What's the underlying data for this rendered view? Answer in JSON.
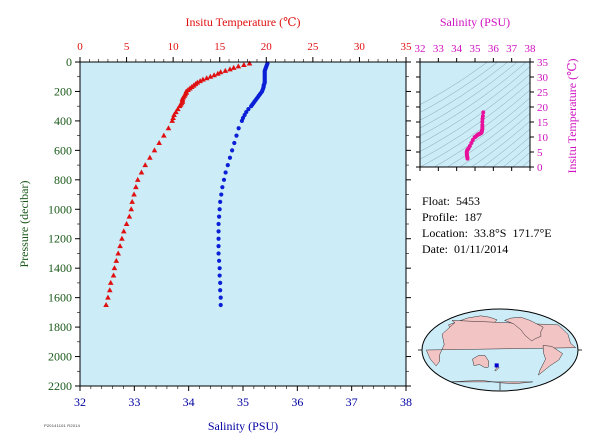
{
  "chart_data": [
    {
      "type": "scatter",
      "name_hint": "profile",
      "top_axis_title": "Insitu Temperature (℃)",
      "bottom_axis_title": "Salinity (PSU)",
      "ylabel": "Pressure (decibar)",
      "temp_range": [
        0,
        35
      ],
      "sal_range": [
        32,
        38
      ],
      "ylim": [
        0,
        2200
      ],
      "y_inverted": true,
      "temp_ticks": [
        "0",
        "5",
        "10",
        "15",
        "20",
        "25",
        "30",
        "35"
      ],
      "sal_ticks": [
        "32",
        "33",
        "34",
        "35",
        "36",
        "37",
        "38"
      ],
      "y_ticks": [
        "0",
        "200",
        "400",
        "600",
        "800",
        "1000",
        "1200",
        "1400",
        "1600",
        "1800",
        "2000",
        "2200"
      ],
      "colors": {
        "temperature": "#e01010",
        "salinity": "#0a1fd6",
        "background": "#ccecf8",
        "temp_axis": "#e01010",
        "sal_axis": "#0000a0",
        "y_axis": "#1a5a1a"
      },
      "temperature": {
        "pressure": [
          10,
          20,
          30,
          40,
          50,
          60,
          70,
          80,
          90,
          100,
          110,
          120,
          130,
          140,
          150,
          160,
          170,
          180,
          190,
          200,
          210,
          220,
          230,
          240,
          250,
          260,
          270,
          280,
          290,
          300,
          320,
          340,
          360,
          380,
          400,
          450,
          500,
          550,
          600,
          650,
          700,
          750,
          800,
          850,
          900,
          950,
          1000,
          1050,
          1100,
          1150,
          1200,
          1250,
          1300,
          1350,
          1400,
          1450,
          1500,
          1550,
          1600,
          1650
        ],
        "values": [
          18.2,
          17.6,
          17.0,
          16.5,
          16.1,
          15.6,
          15.1,
          14.8,
          14.4,
          14.0,
          13.6,
          13.2,
          12.9,
          12.6,
          12.4,
          12.2,
          12.0,
          11.8,
          11.6,
          11.4,
          11.4,
          11.3,
          11.2,
          11.1,
          11.0,
          11.0,
          11.0,
          10.9,
          10.8,
          10.7,
          10.5,
          10.3,
          10.1,
          10.0,
          9.9,
          9.5,
          9.0,
          8.5,
          8.0,
          7.5,
          7.0,
          6.6,
          6.2,
          6.0,
          5.8,
          5.6,
          5.5,
          5.3,
          5.0,
          4.7,
          4.5,
          4.3,
          4.1,
          3.9,
          3.7,
          3.6,
          3.3,
          3.2,
          3.0,
          2.8
        ]
      },
      "salinity": {
        "pressure": [
          10,
          20,
          30,
          40,
          50,
          60,
          70,
          80,
          90,
          100,
          110,
          120,
          130,
          140,
          150,
          160,
          170,
          180,
          190,
          200,
          210,
          220,
          230,
          240,
          250,
          260,
          270,
          280,
          290,
          300,
          320,
          340,
          360,
          380,
          400,
          450,
          500,
          550,
          600,
          650,
          700,
          750,
          800,
          850,
          900,
          950,
          1000,
          1050,
          1100,
          1150,
          1200,
          1250,
          1300,
          1350,
          1400,
          1450,
          1500,
          1550,
          1600,
          1650
        ],
        "values": [
          35.45,
          35.44,
          35.43,
          35.42,
          35.41,
          35.4,
          35.4,
          35.4,
          35.4,
          35.4,
          35.4,
          35.4,
          35.4,
          35.4,
          35.39,
          35.38,
          35.38,
          35.37,
          35.36,
          35.35,
          35.33,
          35.31,
          35.29,
          35.27,
          35.25,
          35.23,
          35.21,
          35.19,
          35.17,
          35.15,
          35.1,
          35.06,
          35.03,
          35.0,
          34.98,
          34.92,
          34.88,
          34.84,
          34.8,
          34.76,
          34.72,
          34.68,
          34.65,
          34.62,
          34.6,
          34.58,
          34.57,
          34.56,
          34.55,
          34.55,
          34.55,
          34.55,
          34.55,
          34.56,
          34.57,
          34.57,
          34.58,
          34.58,
          34.59,
          34.59
        ]
      }
    },
    {
      "type": "scatter",
      "name_hint": "ts-diagram",
      "title": "Salinity (PSU)",
      "ylabel": "Insitu Temperature (℃)",
      "xlim": [
        32,
        38
      ],
      "ylim": [
        0,
        35
      ],
      "x_ticks": [
        "32",
        "33",
        "34",
        "35",
        "36",
        "37",
        "38"
      ],
      "y_ticks": [
        "0",
        "5",
        "10",
        "15",
        "20",
        "25",
        "30",
        "35"
      ],
      "color": "#e8109a",
      "axis_color": "#d010c0",
      "background": "#ccecf8",
      "points": [
        [
          34.59,
          2.8
        ],
        [
          34.58,
          3.2
        ],
        [
          34.57,
          3.6
        ],
        [
          34.56,
          4.1
        ],
        [
          34.55,
          4.5
        ],
        [
          34.55,
          5.0
        ],
        [
          34.57,
          5.5
        ],
        [
          34.6,
          5.8
        ],
        [
          34.65,
          6.2
        ],
        [
          34.72,
          7.0
        ],
        [
          34.8,
          8.0
        ],
        [
          34.88,
          9.0
        ],
        [
          34.98,
          9.9
        ],
        [
          35.03,
          10.1
        ],
        [
          35.1,
          10.5
        ],
        [
          35.15,
          10.7
        ],
        [
          35.19,
          10.9
        ],
        [
          35.23,
          11.0
        ],
        [
          35.27,
          11.1
        ],
        [
          35.31,
          11.3
        ],
        [
          35.35,
          11.4
        ],
        [
          35.37,
          11.8
        ],
        [
          35.38,
          12.2
        ],
        [
          35.4,
          12.6
        ],
        [
          35.4,
          13.2
        ],
        [
          35.4,
          14.0
        ],
        [
          35.4,
          15.1
        ],
        [
          35.41,
          16.1
        ],
        [
          35.43,
          17.0
        ],
        [
          35.45,
          18.2
        ]
      ]
    }
  ],
  "info": {
    "float": "Float:  5453",
    "profile": "Profile:  187",
    "location": "Location:  33.8°S  171.7°E",
    "date": "Date:  01/11/2014"
  },
  "footer_code": "P20141101 R2014",
  "map": {
    "marker_lon": 171.7,
    "marker_lat": -33.8,
    "marker_color": "#0000cc",
    "ocean_color": "#ccecf8",
    "land_color": "#f2c4c4"
  }
}
